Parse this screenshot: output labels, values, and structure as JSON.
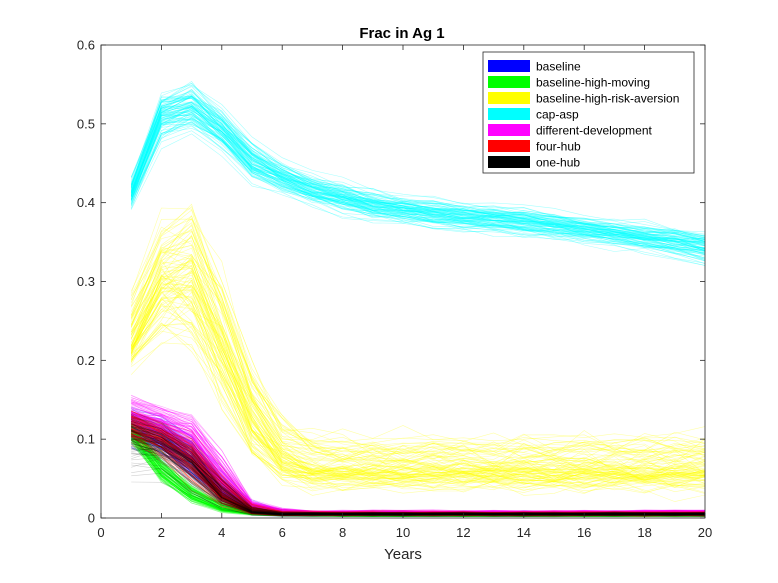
{
  "chart_data": {
    "type": "line",
    "title": "Frac in Ag 1",
    "xlabel": "Years",
    "ylabel": "",
    "xlim": [
      0,
      20
    ],
    "ylim": [
      0,
      0.6
    ],
    "xticks": [
      "0",
      "2",
      "4",
      "6",
      "8",
      "10",
      "12",
      "14",
      "16",
      "18",
      "20"
    ],
    "yticks": [
      "0",
      "0.1",
      "0.2",
      "0.3",
      "0.4",
      "0.5",
      "0.6"
    ],
    "grid": false,
    "legend_position": "top-right",
    "x": [
      1,
      2,
      3,
      4,
      5,
      6,
      7,
      8,
      9,
      10,
      11,
      12,
      13,
      14,
      15,
      16,
      17,
      18,
      19,
      20
    ],
    "series": [
      {
        "name": "baseline",
        "color": "#0000ff",
        "runs": 100,
        "mean": [
          0.12,
          0.105,
          0.08,
          0.035,
          0.01,
          0.006,
          0.005,
          0.005,
          0.005,
          0.005,
          0.005,
          0.005,
          0.005,
          0.005,
          0.005,
          0.005,
          0.005,
          0.005,
          0.005,
          0.005
        ],
        "min": [
          0.07,
          0.05,
          0.01,
          0.005,
          0.002,
          0.001,
          0.001,
          0.001,
          0.001,
          0.001,
          0.001,
          0.001,
          0.001,
          0.001,
          0.001,
          0.001,
          0.001,
          0.001,
          0.001,
          0.001
        ],
        "max": [
          0.16,
          0.15,
          0.13,
          0.09,
          0.03,
          0.015,
          0.012,
          0.012,
          0.012,
          0.012,
          0.012,
          0.012,
          0.012,
          0.012,
          0.012,
          0.012,
          0.012,
          0.012,
          0.012,
          0.012
        ]
      },
      {
        "name": "baseline-high-moving",
        "color": "#00ff00",
        "runs": 100,
        "mean": [
          0.11,
          0.06,
          0.03,
          0.012,
          0.006,
          0.004,
          0.004,
          0.003,
          0.003,
          0.003,
          0.003,
          0.003,
          0.003,
          0.003,
          0.003,
          0.003,
          0.003,
          0.003,
          0.003,
          0.003
        ],
        "min": [
          0.085,
          0.035,
          0.012,
          0.004,
          0.002,
          0.001,
          0.001,
          0.001,
          0.001,
          0.001,
          0.001,
          0.001,
          0.001,
          0.001,
          0.001,
          0.001,
          0.001,
          0.001,
          0.001,
          0.001
        ],
        "max": [
          0.14,
          0.1,
          0.06,
          0.03,
          0.012,
          0.008,
          0.007,
          0.006,
          0.006,
          0.006,
          0.006,
          0.006,
          0.006,
          0.006,
          0.006,
          0.006,
          0.006,
          0.006,
          0.006,
          0.006
        ]
      },
      {
        "name": "baseline-high-risk-aversion",
        "color": "#ffff00",
        "runs": 100,
        "mean": [
          0.22,
          0.3,
          0.31,
          0.22,
          0.12,
          0.075,
          0.062,
          0.06,
          0.06,
          0.06,
          0.06,
          0.06,
          0.06,
          0.06,
          0.06,
          0.06,
          0.06,
          0.06,
          0.06,
          0.06
        ],
        "min": [
          0.15,
          0.13,
          0.1,
          0.05,
          0.02,
          0.01,
          0.005,
          0.005,
          0.005,
          0.005,
          0.005,
          0.005,
          0.005,
          0.005,
          0.005,
          0.005,
          0.005,
          0.005,
          0.005,
          0.005
        ],
        "max": [
          0.33,
          0.44,
          0.46,
          0.38,
          0.26,
          0.17,
          0.14,
          0.135,
          0.135,
          0.135,
          0.135,
          0.135,
          0.135,
          0.14,
          0.14,
          0.14,
          0.14,
          0.14,
          0.14,
          0.14
        ]
      },
      {
        "name": "cap-asp",
        "color": "#00ffff",
        "runs": 100,
        "mean": [
          0.41,
          0.51,
          0.52,
          0.49,
          0.45,
          0.43,
          0.415,
          0.405,
          0.395,
          0.39,
          0.385,
          0.38,
          0.378,
          0.375,
          0.37,
          0.365,
          0.36,
          0.355,
          0.35,
          0.345
        ],
        "min": [
          0.38,
          0.45,
          0.47,
          0.45,
          0.41,
          0.4,
          0.385,
          0.375,
          0.365,
          0.36,
          0.355,
          0.35,
          0.348,
          0.345,
          0.34,
          0.335,
          0.33,
          0.325,
          0.315,
          0.3
        ],
        "max": [
          0.45,
          0.56,
          0.575,
          0.54,
          0.5,
          0.47,
          0.45,
          0.44,
          0.43,
          0.42,
          0.42,
          0.415,
          0.41,
          0.405,
          0.4,
          0.395,
          0.39,
          0.385,
          0.38,
          0.375
        ]
      },
      {
        "name": "different-development",
        "color": "#ff00ff",
        "runs": 100,
        "mean": [
          0.13,
          0.12,
          0.1,
          0.05,
          0.012,
          0.007,
          0.006,
          0.006,
          0.006,
          0.006,
          0.006,
          0.006,
          0.006,
          0.006,
          0.006,
          0.006,
          0.006,
          0.007,
          0.007,
          0.007
        ],
        "min": [
          0.09,
          0.08,
          0.04,
          0.015,
          0.004,
          0.002,
          0.002,
          0.002,
          0.002,
          0.002,
          0.002,
          0.002,
          0.002,
          0.002,
          0.002,
          0.002,
          0.002,
          0.002,
          0.002,
          0.002
        ],
        "max": [
          0.17,
          0.155,
          0.145,
          0.1,
          0.03,
          0.015,
          0.012,
          0.012,
          0.012,
          0.012,
          0.012,
          0.012,
          0.012,
          0.012,
          0.012,
          0.012,
          0.012,
          0.012,
          0.012,
          0.012
        ]
      },
      {
        "name": "four-hub",
        "color": "#ff0000",
        "runs": 100,
        "mean": [
          0.115,
          0.1,
          0.075,
          0.03,
          0.008,
          0.005,
          0.005,
          0.005,
          0.005,
          0.005,
          0.005,
          0.005,
          0.005,
          0.005,
          0.005,
          0.005,
          0.005,
          0.005,
          0.005,
          0.005
        ],
        "min": [
          0.08,
          0.06,
          0.02,
          0.006,
          0.002,
          0.001,
          0.001,
          0.001,
          0.001,
          0.001,
          0.001,
          0.001,
          0.001,
          0.001,
          0.001,
          0.001,
          0.001,
          0.001,
          0.001,
          0.001
        ],
        "max": [
          0.155,
          0.14,
          0.12,
          0.08,
          0.025,
          0.012,
          0.01,
          0.01,
          0.01,
          0.01,
          0.01,
          0.01,
          0.01,
          0.01,
          0.01,
          0.01,
          0.01,
          0.01,
          0.01,
          0.01
        ]
      },
      {
        "name": "one-hub",
        "color": "#000000",
        "runs": 100,
        "mean": [
          0.11,
          0.095,
          0.07,
          0.028,
          0.008,
          0.005,
          0.005,
          0.005,
          0.005,
          0.005,
          0.005,
          0.005,
          0.005,
          0.005,
          0.005,
          0.005,
          0.005,
          0.005,
          0.005,
          0.005
        ],
        "min": [
          0.035,
          0.04,
          0.015,
          0.005,
          0.002,
          0.001,
          0.001,
          0.001,
          0.001,
          0.001,
          0.001,
          0.001,
          0.001,
          0.001,
          0.001,
          0.001,
          0.001,
          0.001,
          0.001,
          0.001
        ],
        "max": [
          0.15,
          0.135,
          0.11,
          0.07,
          0.02,
          0.01,
          0.009,
          0.009,
          0.009,
          0.009,
          0.009,
          0.009,
          0.009,
          0.009,
          0.009,
          0.009,
          0.009,
          0.009,
          0.009,
          0.009
        ]
      }
    ]
  }
}
